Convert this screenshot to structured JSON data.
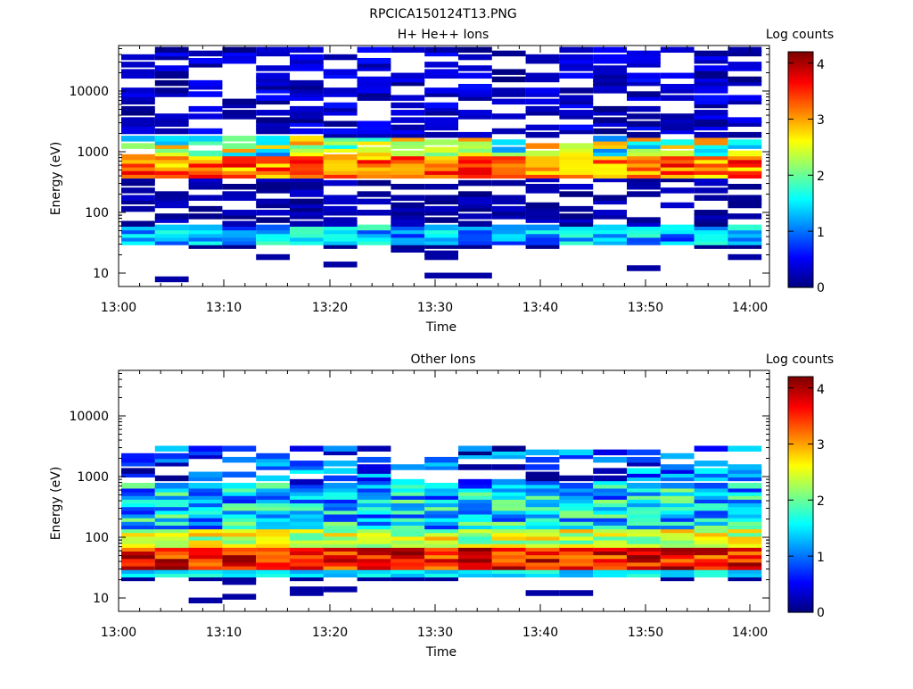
{
  "figure_title": "RPCICA150124T13.PNG",
  "chart_data": [
    {
      "type": "heatmap",
      "title": "H+ He++ Ions",
      "xlabel": "Time",
      "ylabel": "Energy (eV)",
      "colorbar_label": "Log counts",
      "colorbar_ticks": [
        "0",
        "1",
        "2",
        "3",
        "4"
      ],
      "x_ticks": [
        "13:00",
        "13:10",
        "13:20",
        "13:30",
        "13:40",
        "13:50",
        "14:00"
      ],
      "y_ticks": [
        "10",
        "100",
        "1000",
        "10000"
      ],
      "y_scale": "log",
      "colormap": "jet",
      "clim": [
        0,
        4.2
      ]
    },
    {
      "type": "heatmap",
      "title": "Other Ions",
      "xlabel": "Time",
      "ylabel": "Energy (eV)",
      "colorbar_label": "Log counts",
      "colorbar_ticks": [
        "0",
        "1",
        "2",
        "3",
        "4"
      ],
      "x_ticks": [
        "13:00",
        "13:10",
        "13:20",
        "13:30",
        "13:40",
        "13:50",
        "14:00"
      ],
      "y_ticks": [
        "10",
        "100",
        "1000",
        "10000"
      ],
      "y_scale": "log",
      "colormap": "jet",
      "clim": [
        0,
        4.2
      ]
    }
  ]
}
